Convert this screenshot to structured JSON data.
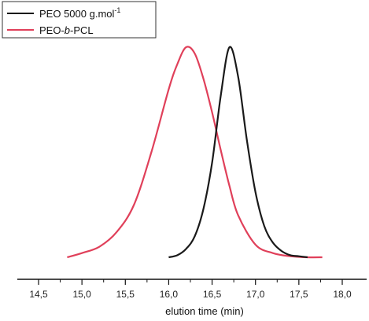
{
  "chart_data": {
    "type": "line",
    "xlabel": "elution time (min)",
    "ylabel": "",
    "xlim": [
      14.5,
      18.0
    ],
    "x_ticks": [
      "14,5",
      "15,0",
      "15,5",
      "16,0",
      "16,5",
      "17,0",
      "17,5",
      "18,0"
    ],
    "grid": false,
    "legend_position": "top-left",
    "legend": {
      "series1_label": "PEO 5000 g.mol",
      "series1_sup": "-1",
      "series2_prefix": "PEO-",
      "series2_italic": "b",
      "series2_suffix": "-PCL"
    },
    "series": [
      {
        "name": "PEO 5000 g.mol-1",
        "color": "#1a1a1a",
        "x": [
          16.0,
          16.1,
          16.2,
          16.3,
          16.4,
          16.5,
          16.6,
          16.7,
          16.8,
          16.9,
          17.0,
          17.1,
          17.2,
          17.3,
          17.4,
          17.5,
          17.6
        ],
        "y": [
          0.0,
          0.01,
          0.04,
          0.1,
          0.23,
          0.45,
          0.77,
          1.0,
          0.86,
          0.56,
          0.31,
          0.15,
          0.07,
          0.03,
          0.01,
          0.005,
          0.0
        ]
      },
      {
        "name": "PEO-b-PCL",
        "color": "#e0405a",
        "x": [
          14.83,
          15.0,
          15.2,
          15.4,
          15.6,
          15.8,
          16.0,
          16.1,
          16.2,
          16.3,
          16.4,
          16.5,
          16.6,
          16.7,
          16.8,
          17.0,
          17.2,
          17.4,
          17.6,
          17.77
        ],
        "y": [
          0.0,
          0.02,
          0.05,
          0.12,
          0.25,
          0.5,
          0.8,
          0.92,
          1.0,
          0.97,
          0.85,
          0.69,
          0.51,
          0.34,
          0.2,
          0.06,
          0.02,
          0.005,
          0.0,
          0.0
        ]
      }
    ]
  }
}
